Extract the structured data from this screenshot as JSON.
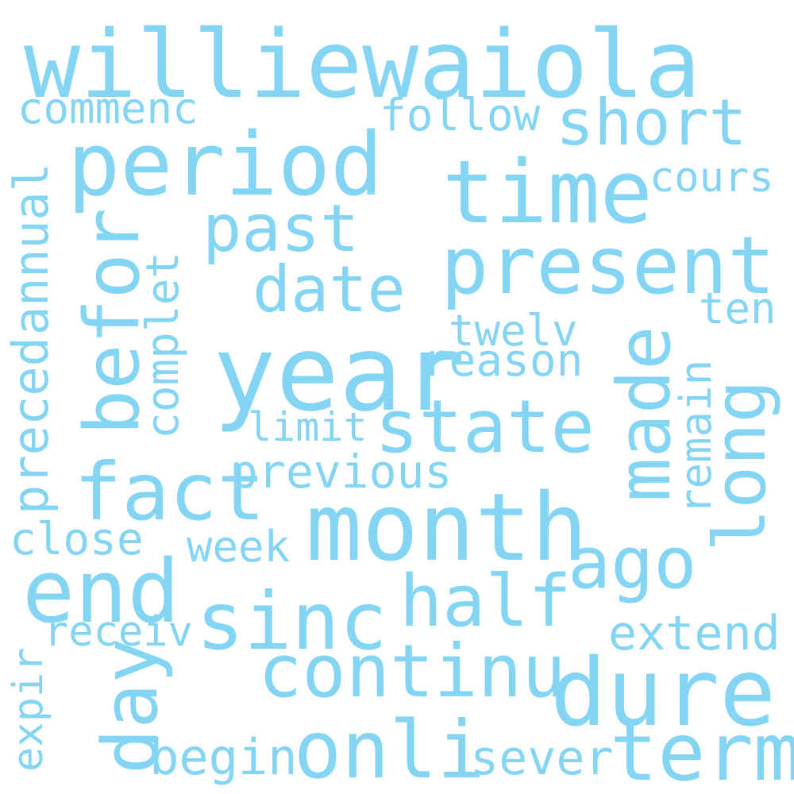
{
  "colors": {
    "word": "#84d4f3",
    "background": "#ffffff"
  },
  "words": [
    "williewaiola",
    "commenc",
    "follow",
    "short",
    "period",
    "time",
    "cours",
    "annual",
    "befor",
    "complet",
    "past",
    "present",
    "date",
    "ten",
    "twelv",
    "year",
    "reason",
    "preced",
    "made",
    "remain",
    "long",
    "limit",
    "state",
    "fact",
    "previous",
    "month",
    "close",
    "week",
    "ago",
    "end",
    "half",
    "sinc",
    "receiv",
    "extend",
    "expir",
    "day",
    "continu",
    "dure",
    "onli",
    "begin",
    "sever",
    "term"
  ]
}
